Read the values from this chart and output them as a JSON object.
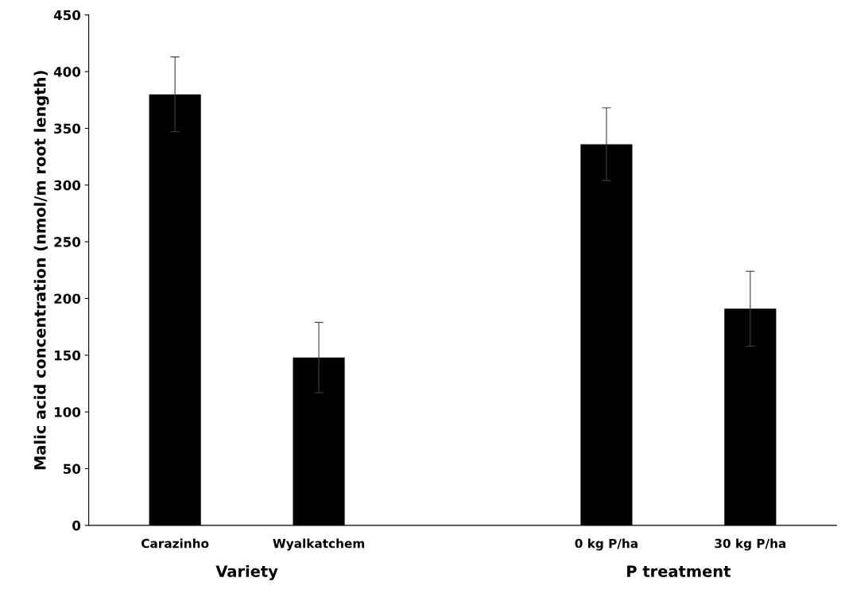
{
  "chart_data": {
    "type": "bar",
    "ylabel": "Malic acid concentration (nmol/m root length)",
    "categories": [
      "Carazinho",
      "Wyalkatchem",
      null,
      "0 kg P/ha",
      "30 kg P/ha"
    ],
    "values": [
      380,
      148,
      null,
      336,
      191
    ],
    "errors": [
      33,
      31,
      null,
      32,
      33
    ],
    "color": "#000000",
    "ylim": [
      0,
      450
    ],
    "yticks": [
      0,
      50,
      100,
      150,
      200,
      250,
      300,
      350,
      400,
      450
    ],
    "grid": false,
    "legend": false,
    "annotations": [
      "Variety",
      "P treatment"
    ]
  }
}
